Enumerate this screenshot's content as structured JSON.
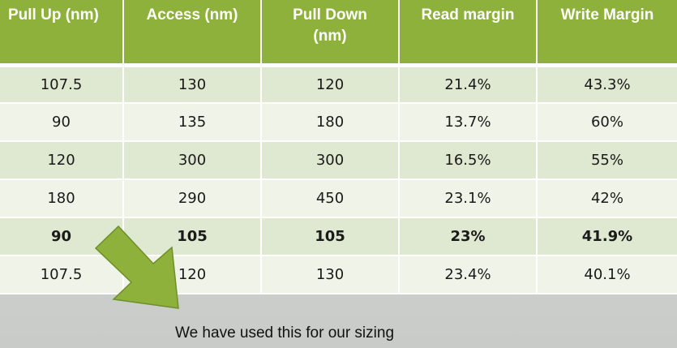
{
  "table": {
    "headers": [
      [
        "Pull Up (nm)"
      ],
      [
        "Access (nm)"
      ],
      [
        "Pull Down",
        "(nm)"
      ],
      [
        "Read margin"
      ],
      [
        "Write Margin"
      ]
    ],
    "rows": [
      [
        "107.5",
        "130",
        "120",
        "21.4%",
        "43.3%"
      ],
      [
        "90",
        "135",
        "180",
        "13.7%",
        "60%"
      ],
      [
        "120",
        "300",
        "300",
        "16.5%",
        "55%"
      ],
      [
        "180",
        "290",
        "450",
        "23.1%",
        "42%"
      ],
      [
        "90",
        "105",
        "105",
        "23%",
        "41.9%"
      ],
      [
        "107.5",
        "120",
        "130",
        "23.4%",
        "40.1%"
      ]
    ],
    "highlight_row_index": 4
  },
  "caption": "We have used this for our sizing",
  "colors": {
    "header_bg": "#8db13a",
    "row_odd": "#dfe8d0",
    "row_even": "#eff3e8",
    "arrow": "#8db13a"
  },
  "icons": {
    "arrow": "down-right-arrow-icon"
  }
}
